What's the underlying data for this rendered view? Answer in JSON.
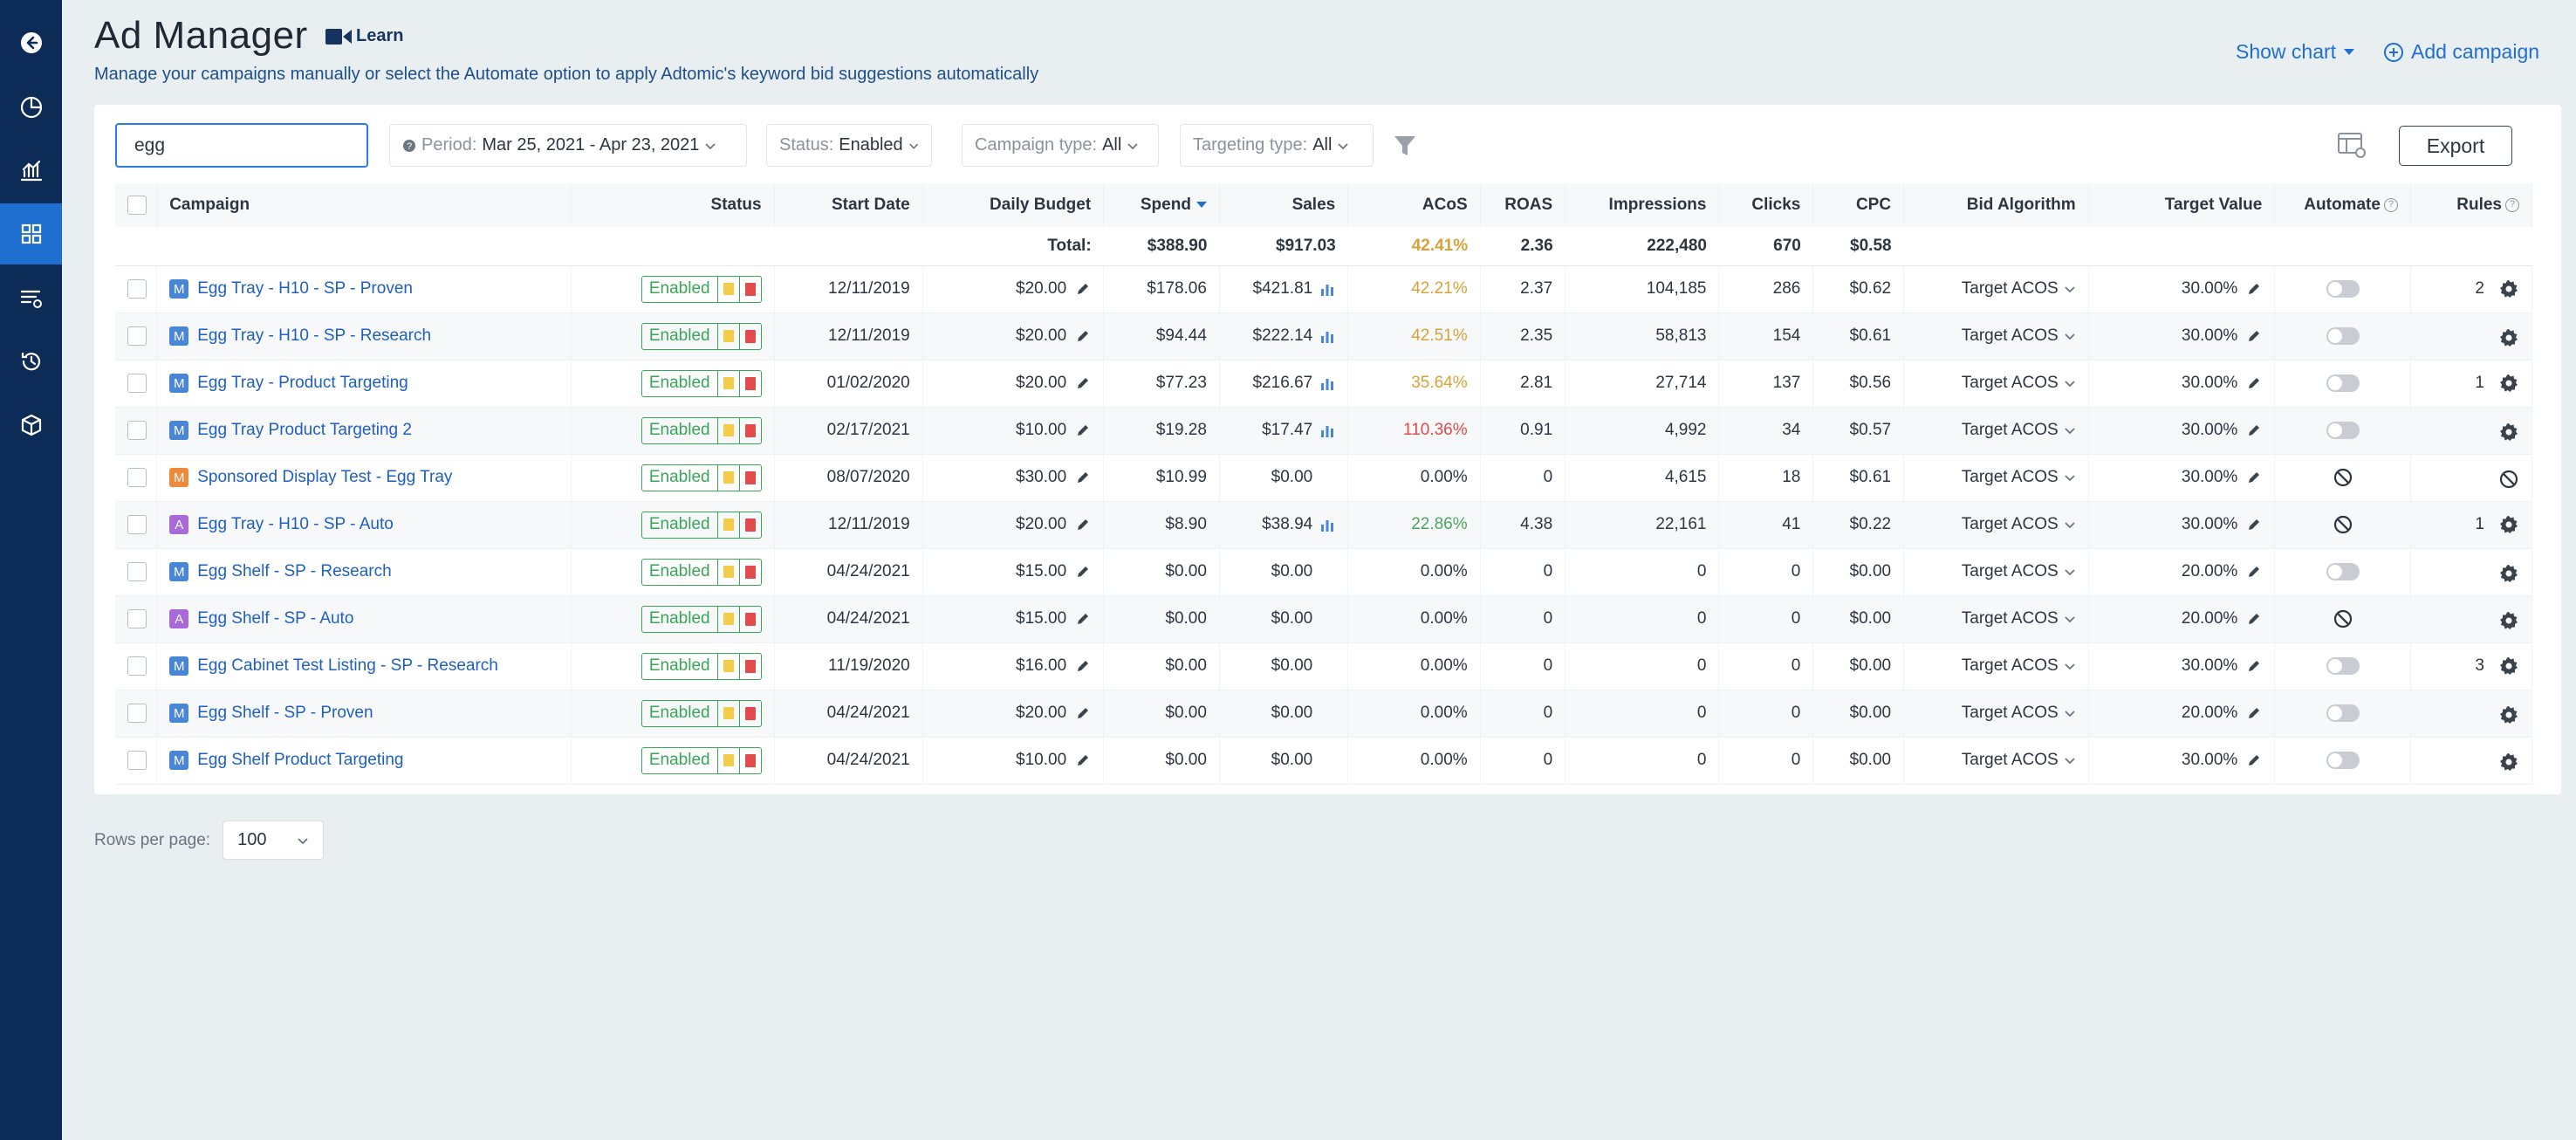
{
  "header": {
    "title": "Ad Manager",
    "learn_label": "Learn",
    "subtitle": "Manage your campaigns manually or select the Automate option to apply Adtomic's keyword bid suggestions automatically",
    "show_chart_label": "Show chart",
    "add_campaign_label": "Add campaign"
  },
  "toolbar": {
    "search_value": "egg",
    "period_label": "Period:",
    "period_value": "Mar 25, 2021 - Apr 23, 2021",
    "status_label": "Status:",
    "status_value": "Enabled",
    "campaign_type_label": "Campaign type:",
    "campaign_type_value": "All",
    "targeting_type_label": "Targeting type:",
    "targeting_type_value": "All",
    "export_label": "Export"
  },
  "table": {
    "columns": {
      "campaign": "Campaign",
      "status": "Status",
      "start_date": "Start Date",
      "daily_budget": "Daily Budget",
      "spend": "Spend",
      "sales": "Sales",
      "acos": "ACoS",
      "roas": "ROAS",
      "impressions": "Impressions",
      "clicks": "Clicks",
      "cpc": "CPC",
      "bid_algorithm": "Bid Algorithm",
      "target_value": "Target Value",
      "automate": "Automate",
      "rules": "Rules"
    },
    "total": {
      "label": "Total:",
      "spend": "$388.90",
      "sales": "$917.03",
      "acos": "42.41%",
      "roas": "2.36",
      "impressions": "222,480",
      "clicks": "670",
      "cpc": "$0.58"
    },
    "rows": [
      {
        "type": "M",
        "name": "Egg Tray - H10 - SP - Proven",
        "status": "Enabled",
        "start": "12/11/2019",
        "budget": "$20.00",
        "spend": "$178.06",
        "sales": "$421.81",
        "chart": true,
        "acos": "42.21%",
        "acos_color": "o",
        "roas": "2.37",
        "impr": "104,185",
        "clicks": "286",
        "cpc": "$0.62",
        "bid": "Target ACOS",
        "target": "30.00%",
        "automate": "toggle",
        "rules": "2",
        "rules_icon": "gear"
      },
      {
        "type": "M",
        "name": "Egg Tray - H10 - SP - Research",
        "status": "Enabled",
        "start": "12/11/2019",
        "budget": "$20.00",
        "spend": "$94.44",
        "sales": "$222.14",
        "chart": true,
        "acos": "42.51%",
        "acos_color": "o",
        "roas": "2.35",
        "impr": "58,813",
        "clicks": "154",
        "cpc": "$0.61",
        "bid": "Target ACOS",
        "target": "30.00%",
        "automate": "toggle",
        "rules": "",
        "rules_icon": "gear"
      },
      {
        "type": "M",
        "name": "Egg Tray - Product Targeting",
        "status": "Enabled",
        "start": "01/02/2020",
        "budget": "$20.00",
        "spend": "$77.23",
        "sales": "$216.67",
        "chart": true,
        "acos": "35.64%",
        "acos_color": "o",
        "roas": "2.81",
        "impr": "27,714",
        "clicks": "137",
        "cpc": "$0.56",
        "bid": "Target ACOS",
        "target": "30.00%",
        "automate": "toggle",
        "rules": "1",
        "rules_icon": "gear"
      },
      {
        "type": "M",
        "name": "Egg Tray Product Targeting 2",
        "status": "Enabled",
        "start": "02/17/2021",
        "budget": "$10.00",
        "spend": "$19.28",
        "sales": "$17.47",
        "chart": true,
        "acos": "110.36%",
        "acos_color": "r",
        "roas": "0.91",
        "impr": "4,992",
        "clicks": "34",
        "cpc": "$0.57",
        "bid": "Target ACOS",
        "target": "30.00%",
        "automate": "toggle",
        "rules": "",
        "rules_icon": "gear"
      },
      {
        "type": "Or",
        "badge": "M",
        "name": "Sponsored Display Test - Egg Tray",
        "status": "Enabled",
        "start": "08/07/2020",
        "budget": "$30.00",
        "spend": "$10.99",
        "sales": "$0.00",
        "chart": false,
        "acos": "0.00%",
        "acos_color": "",
        "roas": "0",
        "impr": "4,615",
        "clicks": "18",
        "cpc": "$0.61",
        "bid": "Target ACOS",
        "target": "30.00%",
        "automate": "ban",
        "rules": "",
        "rules_icon": "ban"
      },
      {
        "type": "A",
        "name": "Egg Tray - H10 - SP - Auto",
        "status": "Enabled",
        "start": "12/11/2019",
        "budget": "$20.00",
        "spend": "$8.90",
        "sales": "$38.94",
        "chart": true,
        "acos": "22.86%",
        "acos_color": "g",
        "roas": "4.38",
        "impr": "22,161",
        "clicks": "41",
        "cpc": "$0.22",
        "bid": "Target ACOS",
        "target": "30.00%",
        "automate": "ban",
        "rules": "1",
        "rules_icon": "gear"
      },
      {
        "type": "M",
        "name": "Egg Shelf - SP - Research",
        "status": "Enabled",
        "start": "04/24/2021",
        "budget": "$15.00",
        "spend": "$0.00",
        "sales": "$0.00",
        "chart": false,
        "acos": "0.00%",
        "acos_color": "",
        "roas": "0",
        "impr": "0",
        "clicks": "0",
        "cpc": "$0.00",
        "bid": "Target ACOS",
        "target": "20.00%",
        "automate": "toggle",
        "rules": "",
        "rules_icon": "gear"
      },
      {
        "type": "A",
        "name": "Egg Shelf - SP - Auto",
        "status": "Enabled",
        "start": "04/24/2021",
        "budget": "$15.00",
        "spend": "$0.00",
        "sales": "$0.00",
        "chart": false,
        "acos": "0.00%",
        "acos_color": "",
        "roas": "0",
        "impr": "0",
        "clicks": "0",
        "cpc": "$0.00",
        "bid": "Target ACOS",
        "target": "20.00%",
        "automate": "ban",
        "rules": "",
        "rules_icon": "gear"
      },
      {
        "type": "M",
        "name": "Egg Cabinet Test Listing - SP - Research",
        "status": "Enabled",
        "start": "11/19/2020",
        "budget": "$16.00",
        "spend": "$0.00",
        "sales": "$0.00",
        "chart": false,
        "acos": "0.00%",
        "acos_color": "",
        "roas": "0",
        "impr": "0",
        "clicks": "0",
        "cpc": "$0.00",
        "bid": "Target ACOS",
        "target": "30.00%",
        "automate": "toggle",
        "rules": "3",
        "rules_icon": "gear"
      },
      {
        "type": "M",
        "name": "Egg Shelf - SP - Proven",
        "status": "Enabled",
        "start": "04/24/2021",
        "budget": "$20.00",
        "spend": "$0.00",
        "sales": "$0.00",
        "chart": false,
        "acos": "0.00%",
        "acos_color": "",
        "roas": "0",
        "impr": "0",
        "clicks": "0",
        "cpc": "$0.00",
        "bid": "Target ACOS",
        "target": "20.00%",
        "automate": "toggle",
        "rules": "",
        "rules_icon": "gear"
      },
      {
        "type": "M",
        "name": "Egg Shelf Product Targeting",
        "status": "Enabled",
        "start": "04/24/2021",
        "budget": "$10.00",
        "spend": "$0.00",
        "sales": "$0.00",
        "chart": false,
        "acos": "0.00%",
        "acos_color": "",
        "roas": "0",
        "impr": "0",
        "clicks": "0",
        "cpc": "$0.00",
        "bid": "Target ACOS",
        "target": "30.00%",
        "automate": "toggle",
        "rules": "",
        "rules_icon": "gear"
      }
    ]
  },
  "pagination": {
    "rows_per_page_label": "Rows per page:",
    "rows_per_page_value": "100"
  },
  "colors": {
    "sidebar": "#0d2b57",
    "sidebar_active": "#1f6fd1",
    "accent": "#1f6fd1",
    "enabled_green": "#3aa557"
  }
}
